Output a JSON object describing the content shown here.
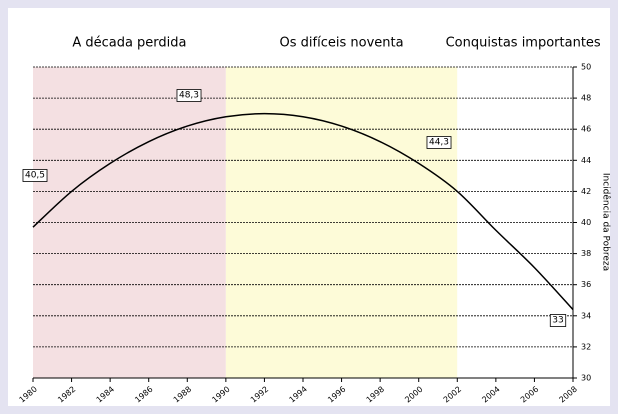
{
  "chart_data": {
    "type": "line",
    "periods": [
      {
        "label": "A década perdida",
        "start": 1980,
        "end": 1990,
        "color": "#f4e0e2"
      },
      {
        "label": "Os difíceis noventa",
        "start": 1990,
        "end": 2002,
        "color": "#fdfbd8"
      },
      {
        "label": "Conquistas importantes",
        "start": 2002,
        "end": 2008,
        "color": "#ffffff"
      }
    ],
    "x": [
      1980,
      1982,
      1984,
      1986,
      1988,
      1990,
      1992,
      1994,
      1996,
      1998,
      2000,
      2002,
      2004,
      2006,
      2008
    ],
    "values": [
      39.7,
      42.0,
      43.8,
      45.2,
      46.2,
      46.8,
      47.0,
      46.8,
      46.2,
      45.2,
      43.8,
      42.0,
      39.5,
      37.1,
      34.4
    ],
    "color": "#000000",
    "xlim": [
      1980,
      2008
    ],
    "xticks": [
      1980,
      1982,
      1984,
      1986,
      1988,
      1990,
      1992,
      1994,
      1996,
      1998,
      2000,
      2002,
      2004,
      2006,
      2008
    ],
    "ylim": [
      30,
      50
    ],
    "yticks": [
      30,
      32,
      34,
      36,
      38,
      40,
      42,
      44,
      46,
      48,
      50
    ],
    "y_label": "Incidência da Pobreza",
    "annotations": [
      "40,5",
      "48,3",
      "44,3",
      "33"
    ],
    "grid": true
  }
}
